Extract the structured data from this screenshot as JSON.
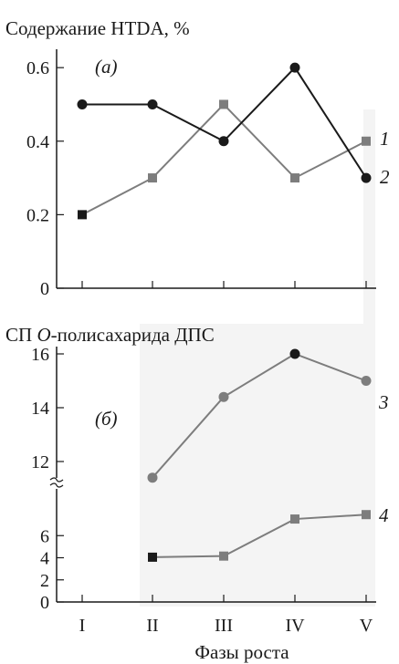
{
  "chart_data": [
    {
      "type": "line",
      "title": "Содержание HTDA, %",
      "panel_label": "(а)",
      "categories": [
        "I",
        "II",
        "III",
        "IV",
        "V"
      ],
      "ylim": [
        0,
        0.65
      ],
      "yticks": [
        "0",
        "0.2",
        "0.4",
        "0.6"
      ],
      "ytick_values": [
        0,
        0.2,
        0.4,
        0.6
      ],
      "series": [
        {
          "name": "1",
          "marker": "square",
          "color": "#7d7d7d",
          "first_marker_color": "#1a1a1a",
          "values": [
            0.2,
            0.3,
            0.5,
            0.3,
            0.4
          ]
        },
        {
          "name": "2",
          "marker": "circle",
          "color": "#1a1a1a",
          "values": [
            0.5,
            0.5,
            0.4,
            0.6,
            0.3
          ]
        }
      ]
    },
    {
      "type": "line",
      "title": "СП О-полисахарида ДПС",
      "title_prefix": "СП ",
      "title_italic": "О",
      "title_suffix": "-полисахарида ДПС",
      "panel_label": "(б)",
      "categories": [
        "I",
        "II",
        "III",
        "IV",
        "V"
      ],
      "xlabel": "Фазы роста",
      "axis_break": true,
      "ylim_lower": [
        0,
        8
      ],
      "ylim_upper": [
        11,
        16.5
      ],
      "yticks_lower": [
        "0",
        "2",
        "4",
        "6"
      ],
      "ytick_values_lower": [
        0,
        2,
        4,
        6
      ],
      "yticks_upper": [
        "12",
        "14",
        "16"
      ],
      "ytick_values_upper": [
        12,
        14,
        16
      ],
      "series": [
        {
          "name": "3",
          "marker": "circle",
          "color": "#7d7d7d",
          "values": [
            null,
            11.4,
            14.4,
            16,
            15
          ]
        },
        {
          "name": "4",
          "marker": "square",
          "color": "#7d7d7d",
          "values": [
            null,
            4.05,
            4.15,
            7.5,
            7.9
          ]
        }
      ]
    }
  ]
}
